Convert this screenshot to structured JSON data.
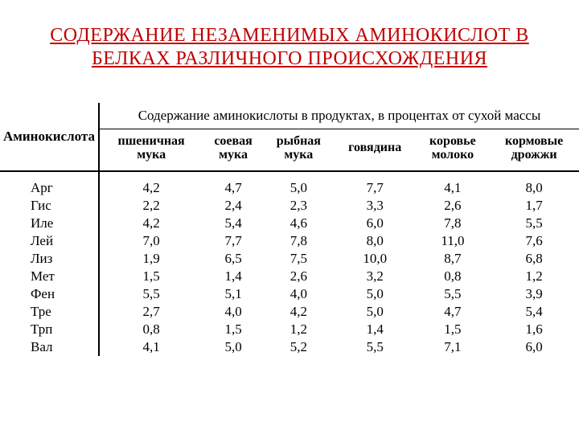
{
  "title": "СОДЕРЖАНИЕ НЕЗАМЕНИМЫХ АМИНОКИСЛОТ В БЕЛКАХ РАЗЛИЧНОГО ПРОИСХОЖДЕНИЯ",
  "table": {
    "corner_label": "Аминокислота",
    "header_span": "Содержание аминокислоты в продуктах, в процентах от сухой массы",
    "columns": [
      "пшеничная\nмука",
      "соевая\nмука",
      "рыбная\nмука",
      "говядина",
      "коровье\nмолоко",
      "кормовые\nдрожжи"
    ],
    "rows": [
      {
        "aa": "Арг",
        "v": [
          "4,2",
          "4,7",
          "5,0",
          "7,7",
          "4,1",
          "8,0"
        ]
      },
      {
        "aa": "Гис",
        "v": [
          "2,2",
          "2,4",
          "2,3",
          "3,3",
          "2,6",
          "1,7"
        ]
      },
      {
        "aa": "Иле",
        "v": [
          "4,2",
          "5,4",
          "4,6",
          "6,0",
          "7,8",
          "5,5"
        ]
      },
      {
        "aa": "Лей",
        "v": [
          "7,0",
          "7,7",
          "7,8",
          "8,0",
          "11,0",
          "7,6"
        ]
      },
      {
        "aa": "Лиз",
        "v": [
          "1,9",
          "6,5",
          "7,5",
          "10,0",
          "8,7",
          "6,8"
        ]
      },
      {
        "aa": "Мет",
        "v": [
          "1,5",
          "1,4",
          "2,6",
          "3,2",
          "0,8",
          "1,2"
        ]
      },
      {
        "aa": "Фен",
        "v": [
          "5,5",
          "5,1",
          "4,0",
          "5,0",
          "5,5",
          "3,9"
        ]
      },
      {
        "aa": "Тре",
        "v": [
          "2,7",
          "4,0",
          "4,2",
          "5,0",
          "4,7",
          "5,4"
        ]
      },
      {
        "aa": "Трп",
        "v": [
          "0,8",
          "1,5",
          "1,2",
          "1,4",
          "1,5",
          "1,6"
        ]
      },
      {
        "aa": "Вал",
        "v": [
          "4,1",
          "5,0",
          "5,2",
          "5,5",
          "7,1",
          "6,0"
        ]
      }
    ]
  },
  "style": {
    "title_color": "#c00000",
    "title_fontsize": 24,
    "body_fontsize": 17,
    "border_color": "#000000",
    "background": "#ffffff"
  }
}
